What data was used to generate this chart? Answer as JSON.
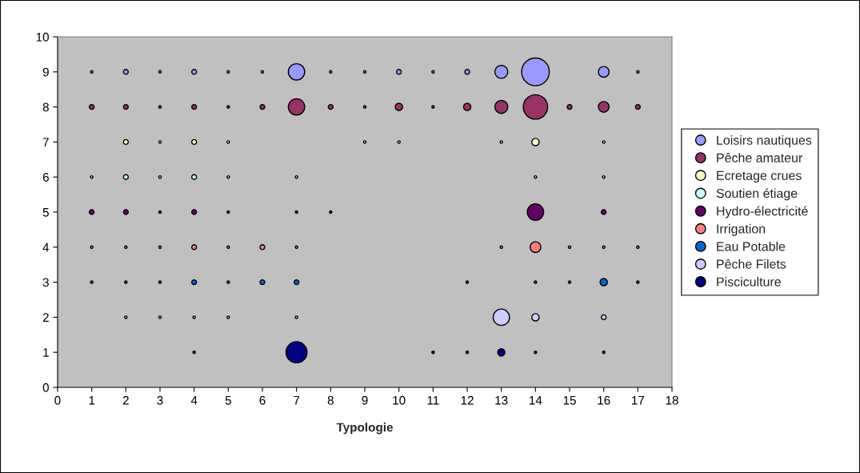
{
  "chart_data": {
    "type": "bubble",
    "xlabel": "Typologie",
    "xlim": [
      0,
      18
    ],
    "xticks": [
      0,
      1,
      2,
      3,
      4,
      5,
      6,
      7,
      8,
      9,
      10,
      11,
      12,
      13,
      14,
      15,
      16,
      17,
      18
    ],
    "ylim": [
      0,
      10
    ],
    "yticks": [
      0,
      1,
      2,
      3,
      4,
      5,
      6,
      7,
      8,
      9,
      10
    ],
    "grid": false,
    "legend": "right",
    "series": [
      {
        "name": "Loisirs nautiques",
        "color": "#9999ff",
        "x": [
          1,
          2,
          3,
          4,
          5,
          6,
          7,
          8,
          9,
          10,
          11,
          12,
          13,
          14,
          16,
          17
        ],
        "values": [
          9,
          9,
          9,
          9,
          9,
          9,
          9,
          9,
          9,
          9,
          9,
          9,
          9,
          9,
          9,
          9
        ],
        "sizes": [
          0.008,
          0.03,
          0.008,
          0.03,
          0.008,
          0.008,
          0.35,
          0.008,
          0.008,
          0.03,
          0.008,
          0.03,
          0.22,
          1,
          0.15,
          0.008
        ]
      },
      {
        "name": "Pêche amateur",
        "color": "#993366",
        "x": [
          1,
          2,
          3,
          4,
          5,
          6,
          7,
          8,
          9,
          10,
          11,
          12,
          13,
          14,
          15,
          16,
          17
        ],
        "values": [
          8,
          8,
          8,
          8,
          8,
          8,
          8,
          8,
          8,
          8,
          8,
          8,
          8,
          8,
          8,
          8,
          8
        ],
        "sizes": [
          0.03,
          0.03,
          0.008,
          0.03,
          0.008,
          0.03,
          0.35,
          0.03,
          0.008,
          0.07,
          0.008,
          0.07,
          0.22,
          0.78,
          0.03,
          0.15,
          0.03
        ]
      },
      {
        "name": "Ecretage crues",
        "color": "#ffffcc",
        "x": [
          2,
          3,
          4,
          5,
          9,
          10,
          13,
          14,
          16
        ],
        "values": [
          7,
          7,
          7,
          7,
          7,
          7,
          7,
          7,
          7
        ],
        "sizes": [
          0.03,
          0.008,
          0.03,
          0.008,
          0.008,
          0.008,
          0.008,
          0.07,
          0.008
        ]
      },
      {
        "name": "Soutien étiage",
        "color": "#ccffff",
        "x": [
          1,
          2,
          3,
          4,
          5,
          7,
          14,
          16
        ],
        "values": [
          6,
          6,
          6,
          6,
          6,
          6,
          6,
          6
        ],
        "sizes": [
          0.008,
          0.03,
          0.008,
          0.03,
          0.008,
          0.008,
          0.008,
          0.008
        ]
      },
      {
        "name": "Hydro-électricité",
        "color": "#660066",
        "x": [
          1,
          2,
          3,
          4,
          5,
          7,
          8,
          14,
          16
        ],
        "values": [
          5,
          5,
          5,
          5,
          5,
          5,
          5,
          5,
          5
        ],
        "sizes": [
          0.03,
          0.03,
          0.008,
          0.03,
          0.008,
          0.008,
          0.008,
          0.35,
          0.03
        ]
      },
      {
        "name": "Irrigation",
        "color": "#ff8080",
        "x": [
          1,
          2,
          3,
          4,
          5,
          6,
          7,
          13,
          14,
          15,
          16,
          17
        ],
        "values": [
          4,
          4,
          4,
          4,
          4,
          4,
          4,
          4,
          4,
          4,
          4,
          4
        ],
        "sizes": [
          0.008,
          0.008,
          0.008,
          0.03,
          0.008,
          0.03,
          0.008,
          0.008,
          0.15,
          0.008,
          0.008,
          0.008
        ]
      },
      {
        "name": "Eau Potable",
        "color": "#0066cc",
        "x": [
          1,
          2,
          3,
          4,
          5,
          6,
          7,
          12,
          14,
          15,
          16,
          17
        ],
        "values": [
          3,
          3,
          3,
          3,
          3,
          3,
          3,
          3,
          3,
          3,
          3,
          3
        ],
        "sizes": [
          0.008,
          0.008,
          0.008,
          0.03,
          0.008,
          0.03,
          0.03,
          0.008,
          0.008,
          0.008,
          0.07,
          0.008
        ]
      },
      {
        "name": "Pêche Filets",
        "color": "#ccccff",
        "x": [
          2,
          3,
          4,
          5,
          7,
          13,
          14,
          16
        ],
        "values": [
          2,
          2,
          2,
          2,
          2,
          2,
          2,
          2
        ],
        "sizes": [
          0.008,
          0.008,
          0.008,
          0.008,
          0.008,
          0.35,
          0.07,
          0.03
        ]
      },
      {
        "name": "Pisciculture",
        "color": "#000080",
        "x": [
          4,
          7,
          11,
          12,
          13,
          14,
          16
        ],
        "values": [
          1,
          1,
          1,
          1,
          1,
          1,
          1
        ],
        "sizes": [
          0.008,
          0.58,
          0.008,
          0.008,
          0.07,
          0.008,
          0.008
        ]
      }
    ]
  }
}
